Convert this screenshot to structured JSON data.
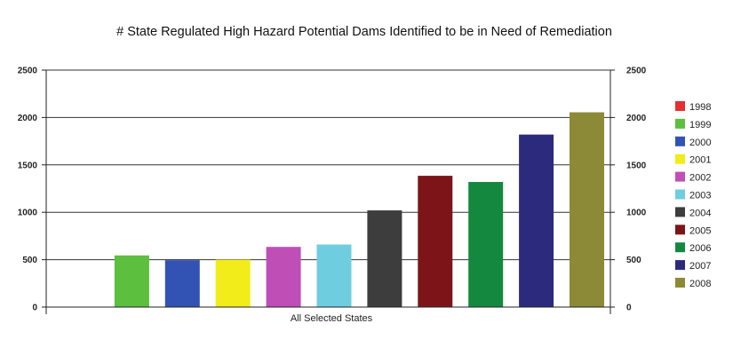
{
  "chart_data": {
    "type": "bar",
    "title": "# State Regulated High Hazard Potential Dams Identified to be in Need of Remediation",
    "categories": [
      "All Selected States"
    ],
    "ylim": [
      0,
      2500
    ],
    "yticks": [
      0,
      500,
      1000,
      1500,
      2000,
      2500
    ],
    "grid": true,
    "legend_position": "right",
    "series": [
      {
        "name": "1998",
        "color": "#e53030",
        "values": [
          0
        ]
      },
      {
        "name": "1999",
        "color": "#5cbf3e",
        "values": [
          545
        ]
      },
      {
        "name": "2000",
        "color": "#3353b4",
        "values": [
          495
        ]
      },
      {
        "name": "2001",
        "color": "#f2ec1a",
        "values": [
          500
        ]
      },
      {
        "name": "2002",
        "color": "#bf4fb7",
        "values": [
          635
        ]
      },
      {
        "name": "2003",
        "color": "#6fcde0",
        "values": [
          660
        ]
      },
      {
        "name": "2004",
        "color": "#3d3d3d",
        "values": [
          1020
        ]
      },
      {
        "name": "2005",
        "color": "#7d1518",
        "values": [
          1385
        ]
      },
      {
        "name": "2006",
        "color": "#15883f",
        "values": [
          1320
        ]
      },
      {
        "name": "2007",
        "color": "#2c2a7c",
        "values": [
          1820
        ]
      },
      {
        "name": "2008",
        "color": "#8c8a36",
        "values": [
          2055
        ]
      }
    ]
  }
}
